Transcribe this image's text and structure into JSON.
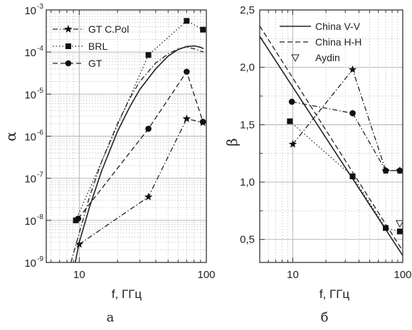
{
  "chart_data": [
    {
      "type": "line",
      "panel_label": "а",
      "title": "",
      "xlabel": "f, ГГц",
      "ylabel": "α",
      "x_scale": "log",
      "y_scale": "log",
      "xlim": [
        5.5,
        100
      ],
      "ylim": [
        1e-09,
        0.001
      ],
      "x_ticks": [
        10,
        100
      ],
      "x_tick_labels": [
        "10",
        "100"
      ],
      "y_ticks": [
        1e-09,
        1e-08,
        1e-07,
        1e-06,
        1e-05,
        0.0001,
        0.001
      ],
      "y_tick_labels": [
        "10",
        "10",
        "10",
        "10",
        "10",
        "10",
        "10"
      ],
      "y_tick_exponents": [
        "-9",
        "-8",
        "-7",
        "-6",
        "-5",
        "-4",
        "-3"
      ],
      "grid": true,
      "legend_position": "top-left",
      "series": [
        {
          "name": "GT C.Pol",
          "marker": "star",
          "line": "dash-dot",
          "x": [
            10,
            35,
            70,
            94
          ],
          "y": [
            2.7e-09,
            3.6e-08,
            2.6e-06,
            2.1e-06
          ]
        },
        {
          "name": "BRL",
          "marker": "square",
          "line": "dot",
          "x": [
            9.4,
            35,
            70,
            94
          ],
          "y": [
            1e-08,
            8.5e-05,
            0.00055,
            0.00034
          ]
        },
        {
          "name": "GT",
          "marker": "circle",
          "line": "dash",
          "x": [
            9.8,
            35,
            70,
            94
          ],
          "y": [
            1.1e-08,
            1.5e-06,
            3.4e-05,
            2.2e-06
          ]
        },
        {
          "name": "",
          "marker": "none",
          "line": "solid",
          "x": [
            9.3,
            10,
            12,
            15,
            20,
            25,
            30,
            40,
            50,
            60,
            70,
            80,
            90,
            95
          ],
          "y": [
            1e-09,
            3e-09,
            2e-08,
            1.5e-07,
            1.3e-06,
            5e-06,
            1.3e-05,
            4e-05,
            8e-05,
            0.000115,
            0.000135,
            0.00014,
            0.00013,
            0.00012
          ]
        },
        {
          "name": "",
          "marker": "none",
          "line": "dash-dot",
          "x": [
            8.6,
            10,
            12,
            15,
            20,
            25,
            30,
            40,
            50,
            60,
            70,
            80,
            90,
            95
          ],
          "y": [
            1e-09,
            5e-09,
            3.5e-08,
            2.5e-07,
            2e-06,
            8e-06,
            2e-05,
            5.5e-05,
            9e-05,
            0.00012,
            0.00013,
            0.00012,
            0.000105,
            0.0001
          ]
        }
      ]
    },
    {
      "type": "line",
      "panel_label": "б",
      "title": "",
      "xlabel": "f, ГГц",
      "ylabel": "β",
      "x_scale": "log",
      "y_scale": "linear",
      "xlim": [
        5,
        100
      ],
      "ylim": [
        0.3,
        2.5
      ],
      "x_ticks": [
        10,
        100
      ],
      "x_tick_labels": [
        "10",
        "100"
      ],
      "y_ticks": [
        0.5,
        1.0,
        1.5,
        2.0,
        2.5
      ],
      "y_tick_labels": [
        "0,5",
        "1,0",
        "1,5",
        "2,0",
        "2,5"
      ],
      "grid": true,
      "legend_position": "top-right",
      "series": [
        {
          "name": "China V-V",
          "marker": "none",
          "line": "solid",
          "x": [
            5,
            100
          ],
          "y": [
            2.27,
            0.36
          ]
        },
        {
          "name": "China H-H",
          "marker": "none",
          "line": "dash",
          "x": [
            5,
            100
          ],
          "y": [
            2.36,
            0.4
          ]
        },
        {
          "name": "Aydin",
          "marker": "triangle-down",
          "line": "none",
          "x": [
            94
          ],
          "y": [
            0.64
          ]
        },
        {
          "name": "",
          "marker": "star",
          "line": "dash-dot",
          "x": [
            10,
            35,
            70,
            94
          ],
          "y": [
            1.33,
            1.98,
            1.1,
            1.1
          ]
        },
        {
          "name": "",
          "marker": "square",
          "line": "dot",
          "x": [
            9.4,
            35,
            70,
            94
          ],
          "y": [
            1.53,
            1.05,
            0.6,
            0.57
          ]
        },
        {
          "name": "",
          "marker": "circle",
          "line": "dash-dot",
          "x": [
            9.8,
            35,
            70,
            94
          ],
          "y": [
            1.7,
            1.6,
            1.1,
            1.1
          ]
        }
      ]
    }
  ]
}
